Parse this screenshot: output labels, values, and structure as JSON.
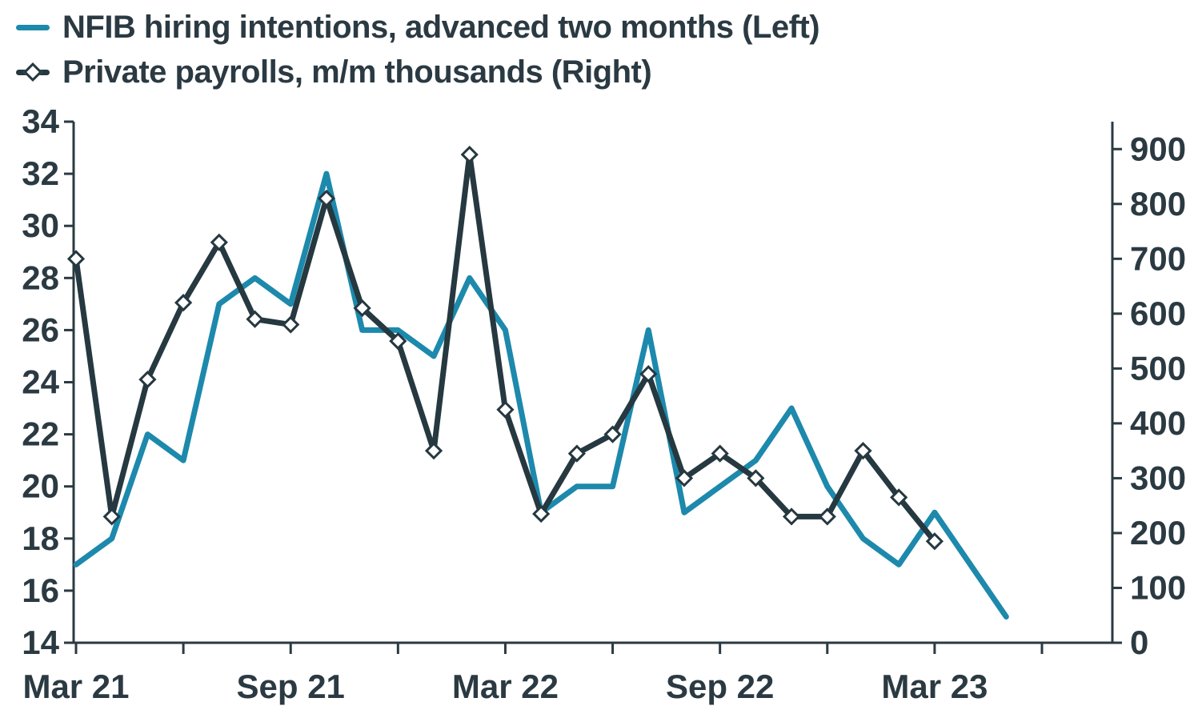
{
  "legend": {
    "items": [
      {
        "label": "NFIB hiring intentions, advanced two months (Left)",
        "series": "nfib"
      },
      {
        "label": "Private payrolls, m/m thousands (Right)",
        "series": "payrolls"
      }
    ]
  },
  "colors": {
    "nfib": "#1d89ac",
    "payrolls": "#263840",
    "axis": "#2b3a42",
    "text": "#2b3a42",
    "marker_fill": "#ffffff"
  },
  "chart_data": {
    "type": "line",
    "title": "",
    "x": [
      "Mar 21",
      "Apr 21",
      "May 21",
      "Jun 21",
      "Jul 21",
      "Aug 21",
      "Sep 21",
      "Oct 21",
      "Nov 21",
      "Dec 21",
      "Jan 22",
      "Feb 22",
      "Mar 22",
      "Apr 22",
      "May 22",
      "Jun 22",
      "Jul 22",
      "Aug 22",
      "Sep 22",
      "Oct 22",
      "Nov 22",
      "Dec 22",
      "Jan 23",
      "Feb 23",
      "Mar 23",
      "Apr 23",
      "May 23"
    ],
    "series": [
      {
        "name": "NFIB hiring intentions, advanced two months",
        "axis": "left",
        "color": "#1d89ac",
        "marker": "none",
        "values": [
          17,
          18,
          22,
          21,
          27,
          28,
          27,
          32,
          26,
          26,
          25,
          28,
          26,
          19,
          20,
          20,
          26,
          19,
          20,
          21,
          23,
          20,
          18,
          17,
          19,
          17,
          15
        ]
      },
      {
        "name": "Private payrolls, m/m thousands",
        "axis": "right",
        "color": "#263840",
        "marker": "diamond",
        "values": [
          700,
          230,
          480,
          620,
          730,
          590,
          580,
          810,
          610,
          550,
          350,
          890,
          425,
          235,
          345,
          380,
          490,
          300,
          345,
          300,
          230,
          230,
          350,
          265,
          185,
          null,
          null
        ]
      }
    ],
    "left_axis": {
      "min": 14,
      "max": 34,
      "ticks": [
        14,
        16,
        18,
        20,
        22,
        24,
        26,
        28,
        30,
        32,
        34
      ]
    },
    "right_axis": {
      "min": 0,
      "max": 950,
      "ticks": [
        0,
        100,
        200,
        300,
        400,
        500,
        600,
        700,
        800,
        900
      ]
    },
    "x_tick_month_indices": [
      0,
      3,
      6,
      9,
      12,
      15,
      18,
      21,
      24,
      27
    ],
    "x_label_ticks": [
      {
        "month_index": 0,
        "label": "Mar 21"
      },
      {
        "month_index": 6,
        "label": "Sep 21"
      },
      {
        "month_index": 12,
        "label": "Mar 22"
      },
      {
        "month_index": 18,
        "label": "Sep 22"
      },
      {
        "month_index": 24,
        "label": "Mar 23"
      }
    ],
    "grid": false,
    "legend_position": "top-left"
  }
}
